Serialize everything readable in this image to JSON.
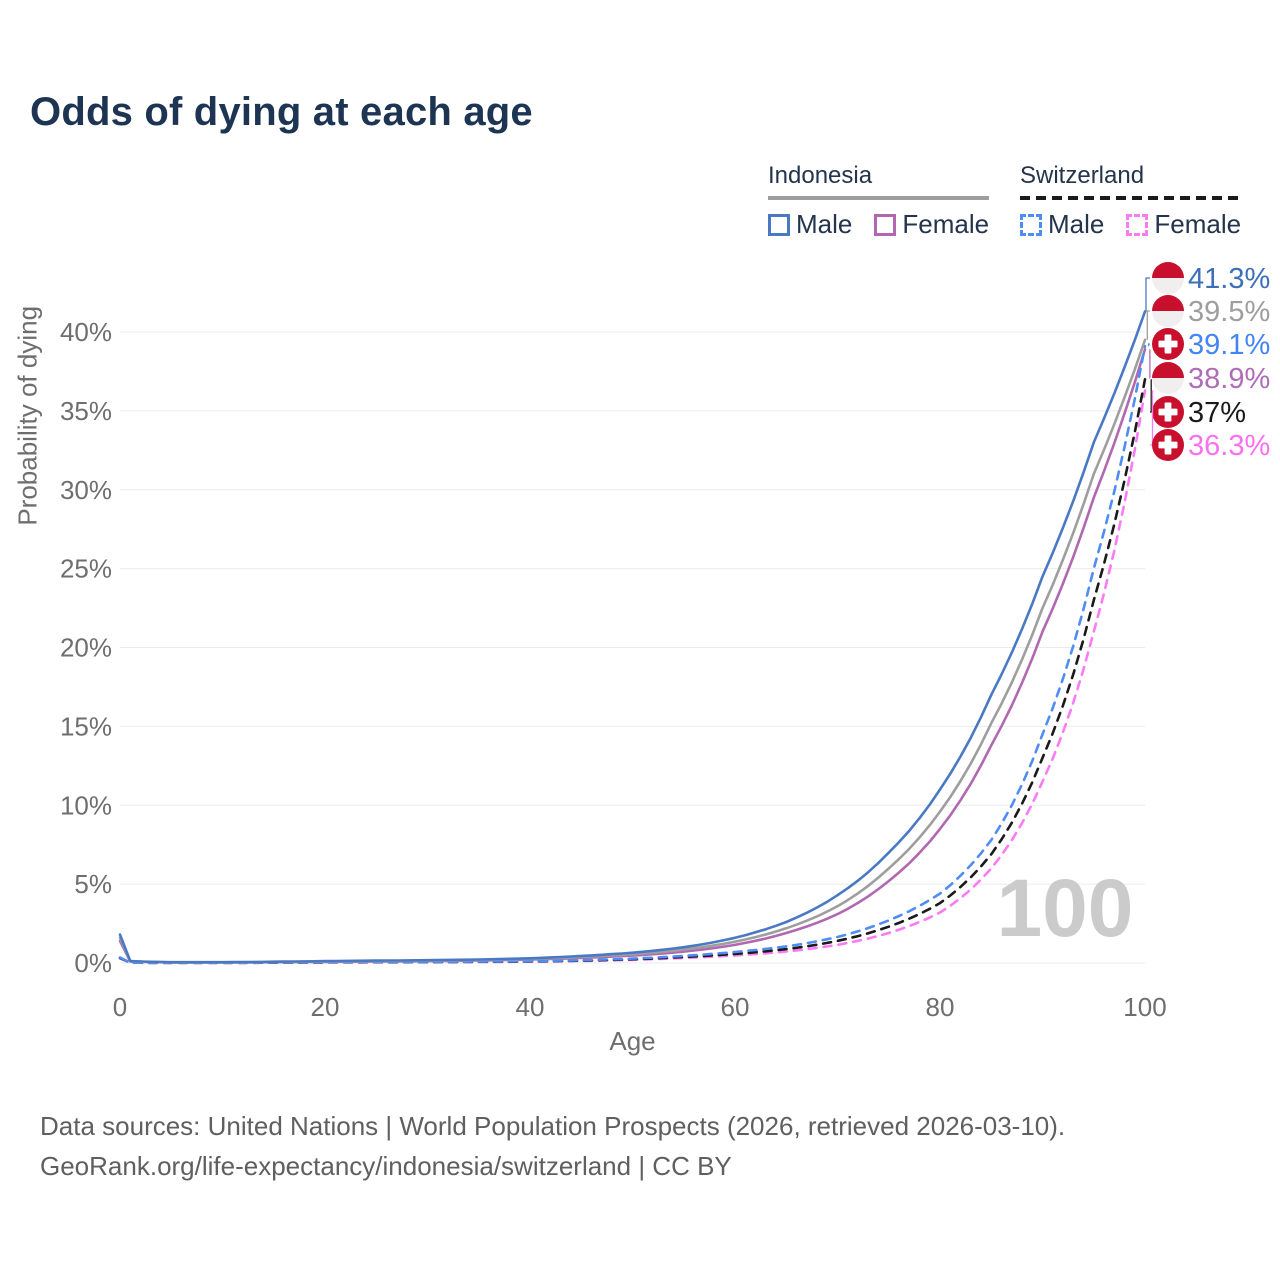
{
  "title": "Odds of dying at each age",
  "legend": {
    "groups": [
      {
        "name": "Indonesia",
        "line_style": "solid",
        "line_color": "#9e9e9e",
        "items": [
          {
            "label": "Male",
            "color": "#4a79c4",
            "dashed": false
          },
          {
            "label": "Female",
            "color": "#b168b1",
            "dashed": false
          }
        ]
      },
      {
        "name": "Switzerland",
        "line_style": "dashed",
        "line_color": "#1a1a1a",
        "items": [
          {
            "label": "Male",
            "color": "#4f8df5",
            "dashed": true
          },
          {
            "label": "Female",
            "color": "#fb7bf5",
            "dashed": true
          }
        ]
      }
    ]
  },
  "watermark_age": "100",
  "flag_colors": {
    "red": "#c8102e",
    "white": "#f0eeee"
  },
  "footer": {
    "line1": "Data sources: United Nations | World Population Prospects (2026, retrieved 2026-03-10).",
    "line2": "GeoRank.org/life-expectancy/indonesia/switzerland | CC BY"
  },
  "chart_data": {
    "type": "line",
    "title": "Odds of dying at each age",
    "xlabel": "Age",
    "ylabel": "Probability of dying",
    "xlim": [
      0,
      100
    ],
    "ylim": [
      0,
      40
    ],
    "xticks": [
      0,
      20,
      40,
      60,
      80,
      100
    ],
    "yticks": [
      0,
      5,
      10,
      15,
      20,
      25,
      30,
      35,
      40
    ],
    "ytick_suffix": "%",
    "grid": "horizontal",
    "legend_position": "top-right",
    "x": [
      0,
      1,
      5,
      10,
      15,
      20,
      25,
      30,
      35,
      40,
      45,
      50,
      55,
      60,
      65,
      70,
      75,
      80,
      85,
      90,
      95,
      100
    ],
    "series": [
      {
        "name": "Indonesia Male",
        "country": "indonesia",
        "color": "#4a79c4",
        "dash": "solid",
        "end_label": "41.3%",
        "label_color": "#3d6fb8",
        "values": [
          1.8,
          0.12,
          0.05,
          0.05,
          0.08,
          0.12,
          0.15,
          0.18,
          0.22,
          0.3,
          0.45,
          0.65,
          1.0,
          1.6,
          2.6,
          4.3,
          7.0,
          11.0,
          17.0,
          24.5,
          33.0,
          41.3
        ]
      },
      {
        "name": "Indonesia Both sexes",
        "country": "indonesia",
        "color": "#9e9e9e",
        "dash": "solid",
        "end_label": "39.5%",
        "label_color": "#9e9e9e",
        "values": [
          1.6,
          0.11,
          0.04,
          0.04,
          0.06,
          0.09,
          0.12,
          0.15,
          0.19,
          0.26,
          0.38,
          0.55,
          0.85,
          1.35,
          2.2,
          3.6,
          6.0,
          9.6,
          15.2,
          22.5,
          31.0,
          39.5
        ]
      },
      {
        "name": "Switzerland Male",
        "country": "switzerland",
        "color": "#4f8df5",
        "dash": "dashed",
        "end_label": "39.1%",
        "label_color": "#4285f4",
        "values": [
          0.35,
          0.02,
          0.01,
          0.01,
          0.03,
          0.05,
          0.06,
          0.07,
          0.09,
          0.12,
          0.18,
          0.28,
          0.45,
          0.7,
          1.05,
          1.65,
          2.7,
          4.4,
          7.8,
          14.5,
          25.0,
          39.1
        ]
      },
      {
        "name": "Indonesia Female",
        "country": "indonesia",
        "color": "#b168b1",
        "dash": "solid",
        "end_label": "38.9%",
        "label_color": "#af6cb8",
        "values": [
          1.4,
          0.1,
          0.04,
          0.03,
          0.05,
          0.07,
          0.09,
          0.12,
          0.16,
          0.22,
          0.32,
          0.47,
          0.72,
          1.15,
          1.9,
          3.1,
          5.2,
          8.5,
          13.8,
          21.0,
          29.5,
          38.9
        ]
      },
      {
        "name": "Switzerland Both sexes",
        "country": "switzerland",
        "color": "#1a1a1a",
        "dash": "dashed",
        "end_label": "37%",
        "label_color": "#1a1a1a",
        "values": [
          0.32,
          0.02,
          0.01,
          0.01,
          0.02,
          0.04,
          0.05,
          0.06,
          0.08,
          0.1,
          0.15,
          0.24,
          0.38,
          0.58,
          0.88,
          1.4,
          2.3,
          3.8,
          6.9,
          13.0,
          23.0,
          37.0
        ]
      },
      {
        "name": "Switzerland Female",
        "country": "switzerland",
        "color": "#fb7bf5",
        "dash": "dashed",
        "end_label": "36.3%",
        "label_color": "#fb70ef",
        "values": [
          0.3,
          0.02,
          0.01,
          0.01,
          0.02,
          0.03,
          0.04,
          0.05,
          0.06,
          0.09,
          0.13,
          0.2,
          0.32,
          0.48,
          0.73,
          1.15,
          1.9,
          3.2,
          6.0,
          11.5,
          21.0,
          36.3
        ]
      }
    ]
  }
}
